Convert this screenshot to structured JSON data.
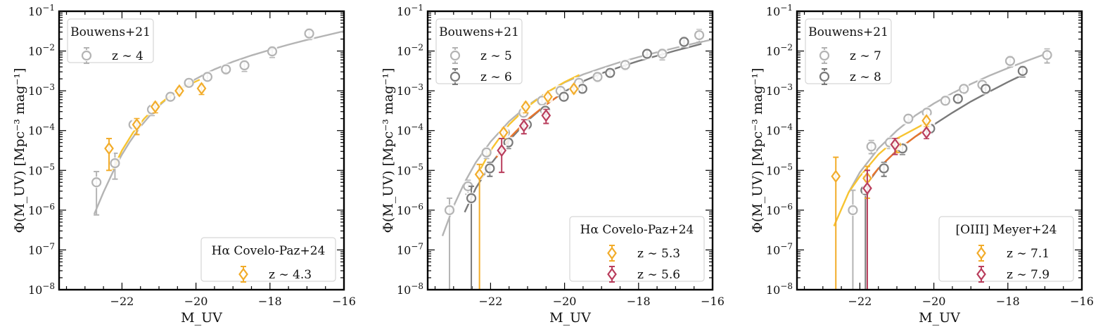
{
  "figure": {
    "ylabel": "Φ(M_UV) [Mpc⁻³ mag⁻¹]",
    "xlabel": "M_UV"
  },
  "colors": {
    "light_gray": "#b4b4b4",
    "dark_gray": "#7a7a7a",
    "yellow": "#f7c431",
    "gold": "#f2ac2a",
    "orange": "#e8742c",
    "crimson": "#b93d5c"
  },
  "chart_data": [
    {
      "type": "scatter",
      "title": "",
      "xlabel": "M_UV",
      "ylabel": "Φ(M_UV) [Mpc⁻³ mag⁻¹]",
      "xlim": [
        -23.7,
        -16
      ],
      "ylim_log10": [
        -8,
        -1
      ],
      "xticks": [
        -22,
        -20,
        -18,
        -16
      ],
      "xtick_labels": [
        "−22",
        "−20",
        "−18",
        "−16"
      ],
      "ytick_labels": [
        "10⁻¹",
        "10⁻²",
        "10⁻³",
        "10⁻⁴",
        "10⁻⁵",
        "10⁻⁶",
        "10⁻⁷",
        "10⁻⁸"
      ],
      "legends": [
        {
          "title": "Bouwens+21",
          "placement": "top-left",
          "entries": [
            {
              "label": "z ∼ 4",
              "color": "#b4b4b4",
              "marker": "circle"
            }
          ]
        },
        {
          "title": "Hα Covelo-Paz+24",
          "placement": "bottom-right",
          "entries": [
            {
              "label": "z ∼ 4.3",
              "color": "#f2ac2a",
              "marker": "diamond"
            }
          ]
        }
      ],
      "curves": [
        {
          "name": "Bouwens z~4 fit",
          "color": "#b4b4b4",
          "x": [
            -22.75,
            -22.5,
            -22.2,
            -22,
            -21.8,
            -21.5,
            -21.2,
            -21,
            -20.7,
            -20.5,
            -20.2,
            -20,
            -19.7,
            -19.5,
            -19,
            -18.5,
            -18,
            -17.5,
            -17,
            -16.5,
            -16
          ],
          "log10_phi": [
            -6.1,
            -5.55,
            -4.95,
            -4.6,
            -4.3,
            -3.9,
            -3.57,
            -3.38,
            -3.13,
            -2.99,
            -2.8,
            -2.7,
            -2.55,
            -2.46,
            -2.27,
            -2.11,
            -1.97,
            -1.84,
            -1.72,
            -1.61,
            -1.5
          ]
        },
        {
          "name": "Covelo-Paz z~4.3 fit",
          "color": "#f7c431",
          "x": [
            -22.25,
            -22,
            -21.7,
            -21.4,
            -21.1,
            -20.8,
            -20.5,
            -20.2,
            -19.9
          ],
          "log10_phi": [
            -4.98,
            -4.5,
            -4.05,
            -3.7,
            -3.42,
            -3.2,
            -3.01,
            -2.85,
            -2.72
          ]
        }
      ],
      "series": [
        {
          "name": "Bouwens+21 z~4",
          "marker": "circle",
          "color": "#b4b4b4",
          "x": [
            -22.69,
            -22.19,
            -21.69,
            -21.19,
            -20.69,
            -20.19,
            -19.69,
            -19.19,
            -18.69,
            -17.94,
            -16.94
          ],
          "log10_phi": [
            -5.3,
            -4.82,
            -3.85,
            -3.47,
            -3.15,
            -2.8,
            -2.65,
            -2.46,
            -2.36,
            -2.01,
            -1.56
          ],
          "err_lo": [
            0.82,
            0.4,
            0.1,
            0.15,
            0.1,
            0.1,
            0.1,
            0.12,
            0.15,
            0.15,
            0.15
          ],
          "err_hi": [
            0.27,
            0.25,
            0.1,
            0.1,
            0.1,
            0.1,
            0.1,
            0.1,
            0.12,
            0.12,
            0.12
          ]
        },
        {
          "name": "Hα Covelo-Paz+24 z~4.3",
          "marker": "diamond",
          "color": "#f2ac2a",
          "x": [
            -22.35,
            -21.6,
            -21.1,
            -20.45,
            -19.85
          ],
          "log10_phi": [
            -4.45,
            -3.85,
            -3.4,
            -3.0,
            -2.94
          ],
          "err_lo": [
            0.55,
            0.25,
            0.15,
            0.12,
            0.15
          ],
          "err_hi": [
            0.25,
            0.15,
            0.12,
            0.1,
            0.12
          ]
        }
      ]
    },
    {
      "type": "scatter",
      "title": "",
      "xlabel": "M_UV",
      "ylabel": "Φ(M_UV) [Mpc⁻³ mag⁻¹]",
      "xlim": [
        -23.7,
        -16
      ],
      "ylim_log10": [
        -8,
        -1
      ],
      "xticks": [
        -22,
        -20,
        -18,
        -16
      ],
      "xtick_labels": [
        "−22",
        "−20",
        "−18",
        "−16"
      ],
      "ytick_labels": [
        "10⁻¹",
        "10⁻²",
        "10⁻³",
        "10⁻⁴",
        "10⁻⁵",
        "10⁻⁶",
        "10⁻⁷",
        "10⁻⁸"
      ],
      "legends": [
        {
          "title": "Bouwens+21",
          "placement": "top-left",
          "entries": [
            {
              "label": "z ∼ 5",
              "color": "#b4b4b4",
              "marker": "circle"
            },
            {
              "label": "z ∼ 6",
              "color": "#7a7a7a",
              "marker": "circle"
            }
          ]
        },
        {
          "title": "Hα Covelo-Paz+24",
          "placement": "bottom-right",
          "entries": [
            {
              "label": "z ∼ 5.3",
              "color": "#f2ac2a",
              "marker": "diamond"
            },
            {
              "label": "z ∼ 5.6",
              "color": "#b93d5c",
              "marker": "diamond"
            }
          ]
        }
      ],
      "curves": [
        {
          "name": "Bouwens z~5 fit",
          "color": "#b4b4b4",
          "x": [
            -23.3,
            -23,
            -22.7,
            -22.4,
            -22,
            -21.5,
            -21,
            -20.5,
            -20,
            -19.5,
            -19,
            -18.5,
            -18,
            -17.5,
            -17,
            -16.5,
            -16
          ],
          "log10_phi": [
            -6.65,
            -5.9,
            -5.3,
            -4.8,
            -4.28,
            -3.77,
            -3.37,
            -3.05,
            -2.79,
            -2.59,
            -2.43,
            -2.28,
            -2.15,
            -2.03,
            -1.92,
            -1.81,
            -1.71
          ]
        },
        {
          "name": "Bouwens z~6 fit",
          "color": "#7a7a7a",
          "x": [
            -22.7,
            -22.4,
            -22,
            -21.5,
            -21,
            -20.5,
            -20,
            -19.5,
            -19,
            -18.5,
            -18,
            -17.5,
            -17,
            -16.5,
            -16.3
          ],
          "log10_phi": [
            -6.05,
            -5.45,
            -4.85,
            -4.25,
            -3.75,
            -3.35,
            -3.02,
            -2.76,
            -2.56,
            -2.4,
            -2.25,
            -2.12,
            -1.99,
            -1.87,
            -1.82
          ]
        },
        {
          "name": "Covelo-Paz z~5.3 fit",
          "color": "#f7c431",
          "x": [
            -22.35,
            -22,
            -21.5,
            -21,
            -20.5,
            -20,
            -19.6
          ],
          "log10_phi": [
            -5.1,
            -4.5,
            -3.85,
            -3.4,
            -3.05,
            -2.78,
            -2.6
          ]
        },
        {
          "name": "Covelo-Paz z~5.6 fit",
          "color": "#e8742c",
          "x": [
            -21.85,
            -21.5,
            -21,
            -20.5,
            -20.2
          ],
          "log10_phi": [
            -4.68,
            -4.2,
            -3.72,
            -3.35,
            -3.15
          ]
        }
      ],
      "series": [
        {
          "name": "Bouwens+21 z~5",
          "marker": "circle",
          "color": "#b4b4b4",
          "x": [
            -23.11,
            -22.61,
            -22.11,
            -21.61,
            -21.11,
            -20.61,
            -20.11,
            -19.61,
            -19.11,
            -18.36,
            -17.36,
            -16.36
          ],
          "log10_phi": [
            -6.0,
            -5.4,
            -4.55,
            -4.05,
            -3.55,
            -3.25,
            -3.0,
            -2.8,
            -2.65,
            -2.35,
            -2.07,
            -1.6
          ],
          "err_lo": [
            3.0,
            0.2,
            0.15,
            0.12,
            0.1,
            0.1,
            0.1,
            0.1,
            0.12,
            0.12,
            0.15,
            0.18
          ],
          "err_hi": [
            0.3,
            0.15,
            0.12,
            0.1,
            0.1,
            0.1,
            0.1,
            0.1,
            0.1,
            0.1,
            0.12,
            0.14
          ]
        },
        {
          "name": "Bouwens+21 z~6",
          "marker": "circle",
          "color": "#7a7a7a",
          "x": [
            -22.52,
            -22.02,
            -21.52,
            -21.02,
            -20.52,
            -20.02,
            -19.52,
            -18.77,
            -17.77,
            -16.77
          ],
          "log10_phi": [
            -5.7,
            -4.95,
            -4.3,
            -3.85,
            -3.5,
            -3.15,
            -2.95,
            -2.55,
            -2.07,
            -1.77
          ],
          "err_lo": [
            2.3,
            0.2,
            0.15,
            0.12,
            0.1,
            0.1,
            0.1,
            0.1,
            0.12,
            0.15
          ],
          "err_hi": [
            0.3,
            0.15,
            0.12,
            0.1,
            0.1,
            0.1,
            0.1,
            0.1,
            0.1,
            0.12
          ]
        },
        {
          "name": "Hα Covelo-Paz+24 z~5.3",
          "marker": "diamond",
          "color": "#f2ac2a",
          "x": [
            -22.3,
            -21.65,
            -21.05,
            -20.45,
            -19.75
          ],
          "log10_phi": [
            -5.1,
            -4.05,
            -3.4,
            -3.15,
            -2.95
          ],
          "err_lo": [
            2.9,
            0.15,
            0.15,
            0.12,
            0.12
          ],
          "err_hi": [
            0.25,
            0.12,
            0.12,
            0.1,
            0.1
          ]
        },
        {
          "name": "Hα Covelo-Paz+24 z~5.6",
          "marker": "diamond",
          "color": "#b93d5c",
          "x": [
            -21.7,
            -21.1,
            -20.5
          ],
          "log10_phi": [
            -4.5,
            -3.88,
            -3.62
          ],
          "err_lo": [
            0.55,
            0.2,
            0.2
          ],
          "err_hi": [
            0.3,
            0.15,
            0.15
          ]
        }
      ]
    },
    {
      "type": "scatter",
      "title": "",
      "xlabel": "M_UV",
      "ylabel": "Φ(M_UV) [Mpc⁻³ mag⁻¹]",
      "xlim": [
        -23.7,
        -16
      ],
      "ylim_log10": [
        -8,
        -1
      ],
      "xticks": [
        -22,
        -20,
        -18,
        -16
      ],
      "xtick_labels": [
        "−22",
        "−20",
        "−18",
        "−16"
      ],
      "ytick_labels": [
        "10⁻¹",
        "10⁻²",
        "10⁻³",
        "10⁻⁴",
        "10⁻⁵",
        "10⁻⁶",
        "10⁻⁷",
        "10⁻⁸"
      ],
      "legends": [
        {
          "title": "Bouwens+21",
          "placement": "top-left",
          "entries": [
            {
              "label": "z ∼ 7",
              "color": "#b4b4b4",
              "marker": "circle"
            },
            {
              "label": "z ∼ 8",
              "color": "#7a7a7a",
              "marker": "circle"
            }
          ]
        },
        {
          "title": "[OIII] Meyer+24",
          "placement": "bottom-right",
          "entries": [
            {
              "label": "z ∼ 7.1",
              "color": "#f2ac2a",
              "marker": "diamond"
            },
            {
              "label": "z ∼ 7.9",
              "color": "#b93d5c",
              "marker": "diamond"
            }
          ]
        }
      ],
      "curves": [
        {
          "name": "Bouwens z~7 fit",
          "color": "#b4b4b4",
          "x": [
            -22.3,
            -22,
            -21.5,
            -21,
            -20.5,
            -20,
            -19.5,
            -19,
            -18.5,
            -18,
            -17.5,
            -17
          ],
          "log10_phi": [
            -5.55,
            -5.05,
            -4.45,
            -4.0,
            -3.62,
            -3.32,
            -3.06,
            -2.83,
            -2.62,
            -2.43,
            -2.25,
            -2.08
          ]
        },
        {
          "name": "Bouwens z~8 fit",
          "color": "#7a7a7a",
          "x": [
            -21.85,
            -21.5,
            -21,
            -20.5,
            -20,
            -19.5,
            -19,
            -18.5,
            -18,
            -17.6
          ],
          "log10_phi": [
            -5.4,
            -4.95,
            -4.5,
            -4.15,
            -3.85,
            -3.55,
            -3.27,
            -3.02,
            -2.78,
            -2.6
          ]
        },
        {
          "name": "Meyer z~7.1 fit",
          "color": "#f7c431",
          "x": [
            -22.7,
            -22.3,
            -22,
            -21.5,
            -21,
            -20.5,
            -20.2
          ],
          "log10_phi": [
            -6.4,
            -5.55,
            -5.15,
            -4.6,
            -4.2,
            -3.95,
            -3.8
          ]
        },
        {
          "name": "Meyer z~7.9 fit",
          "color": "#e8742c",
          "x": [
            -21.85,
            -21.5,
            -21,
            -20.5,
            -20.2
          ],
          "log10_phi": [
            -5.35,
            -4.95,
            -4.5,
            -4.15,
            -3.95
          ]
        }
      ],
      "series": [
        {
          "name": "Bouwens+21 z~7",
          "marker": "circle",
          "color": "#b4b4b4",
          "x": [
            -22.19,
            -21.69,
            -21.19,
            -20.69,
            -20.19,
            -19.69,
            -19.19,
            -18.69,
            -17.94,
            -16.94
          ],
          "log10_phi": [
            -6.0,
            -4.4,
            -4.3,
            -3.7,
            -3.55,
            -3.25,
            -2.95,
            -2.85,
            -2.25,
            -2.1
          ],
          "err_lo": [
            2.0,
            0.18,
            0.15,
            0.12,
            0.12,
            0.1,
            0.12,
            0.12,
            0.15,
            0.2
          ],
          "err_hi": [
            0.5,
            0.15,
            0.12,
            0.1,
            0.1,
            0.1,
            0.1,
            0.1,
            0.12,
            0.15
          ]
        },
        {
          "name": "Bouwens+21 z~8",
          "marker": "circle",
          "color": "#7a7a7a",
          "x": [
            -21.85,
            -21.35,
            -20.85,
            -20.1,
            -19.35,
            -18.6,
            -17.6
          ],
          "log10_phi": [
            -5.5,
            -4.95,
            -4.45,
            -3.95,
            -3.2,
            -2.95,
            -2.5
          ],
          "err_lo": [
            2.5,
            0.2,
            0.15,
            0.12,
            0.12,
            0.12,
            0.15
          ],
          "err_hi": [
            0.35,
            0.15,
            0.12,
            0.1,
            0.1,
            0.1,
            0.12
          ]
        },
        {
          "name": "[OIII] Meyer+24 z~7.1",
          "marker": "diamond",
          "color": "#f2ac2a",
          "x": [
            -22.65,
            -21.8,
            -21.0,
            -20.2
          ],
          "log10_phi": [
            -5.15,
            -5.2,
            -4.35,
            -3.75
          ],
          "err_lo": [
            2.85,
            0.5,
            0.2,
            0.15
          ],
          "err_hi": [
            0.48,
            0.3,
            0.15,
            0.12
          ]
        },
        {
          "name": "[OIII] Meyer+24 z~7.9",
          "marker": "diamond",
          "color": "#b93d5c",
          "x": [
            -21.8,
            -21.05,
            -20.2
          ],
          "log10_phi": [
            -5.45,
            -4.35,
            -4.05
          ],
          "err_lo": [
            2.55,
            0.25,
            0.15
          ],
          "err_hi": [
            0.45,
            0.15,
            0.1
          ]
        }
      ]
    }
  ]
}
